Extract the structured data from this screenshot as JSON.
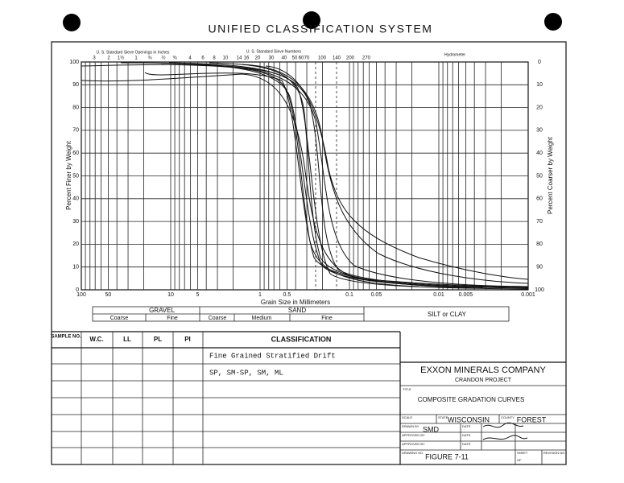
{
  "header": {
    "title": "UNIFIED CLASSIFICATION SYSTEM"
  },
  "chart": {
    "top_label_inches": "U. S. Standard Sieve Openings in Inches",
    "inch_sizes": [
      "3",
      "2",
      "1½",
      "1",
      "¾",
      "½",
      "⅜"
    ],
    "top_label_numbers": "U. S. Standard Sieve Numbers",
    "sieve_numbers": [
      "4",
      "6",
      "8",
      "10",
      "14",
      "16",
      "20",
      "30",
      "40",
      "50",
      "60",
      "70",
      "100",
      "140",
      "200",
      "270"
    ],
    "hydrometer": "Hydrometer",
    "left_axis_label": "Percent Finer by Weight",
    "right_axis_label": "Percent Coarser by Weight",
    "left_ticks": [
      100,
      90,
      80,
      70,
      60,
      50,
      40,
      30,
      20,
      10,
      0
    ],
    "right_ticks": [
      0,
      10,
      20,
      30,
      40,
      50,
      60,
      70,
      80,
      90,
      100
    ],
    "x_ticks": [
      100,
      50,
      10,
      5,
      1,
      0.5,
      0.1,
      0.05,
      0.01,
      0.005,
      0.001
    ],
    "x_label": "Grain Size in Millimeters"
  },
  "soil_classes": {
    "gravel": "GRAVEL",
    "sand": "SAND",
    "silt_clay": "SILT or CLAY",
    "subdivisions": [
      "Coarse",
      "Fine",
      "Coarse",
      "Medium",
      "Fine"
    ]
  },
  "table": {
    "headers": [
      "SAMPLE NO.",
      "W.C.",
      "LL",
      "PL",
      "PI",
      "CLASSIFICATION"
    ],
    "rows": [
      "Fine Grained Stratified Drift",
      "SP, SM-SP, SM, ML"
    ]
  },
  "title_block": {
    "company": "EXXON MINERALS COMPANY",
    "project": "CRANDON PROJECT",
    "title_field": "TITLE",
    "title": "COMPOSITE GRADATION CURVES",
    "scale_field": "SCALE",
    "state_field": "STATE",
    "state": "WISCONSIN",
    "county_field": "COUNTY",
    "county": "FOREST",
    "drawn_by_field": "DRAWN BY",
    "drawn_by": "SMD",
    "date_field": "DATE",
    "approved_by_field": "APPROVED BY",
    "drawing_no_field": "DRAWING NO.",
    "drawing_no": "FIGURE 7-11",
    "sheet_field": "SHEET",
    "of_field": "OF",
    "revision_field": "REVISION NO."
  }
}
